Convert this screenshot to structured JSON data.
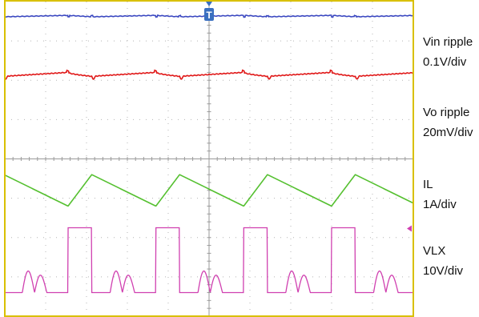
{
  "chart_data": {
    "type": "line",
    "grid": true,
    "trigger_marker": "T",
    "colors": {
      "background": "#ffffff",
      "frame": "#d9c000",
      "grid": "#b4b4b4",
      "vin": "#3a47c0",
      "vo": "#e01818",
      "il": "#55c030",
      "vlx": "#d040b0"
    },
    "x_divisions": 10,
    "y_divisions": 8,
    "series": [
      {
        "key": "vin",
        "name": "Vin ripple",
        "scale": "0.1V/div",
        "level_div": 0.38,
        "shape": "small sawtooth with glitches at switch edges",
        "period_div": 2.15,
        "ripple_div": 0.06
      },
      {
        "key": "vo",
        "name": "Vo ripple",
        "scale": "20mV/div",
        "level_div": 1.85,
        "shape": "scalloped ripple with glitches at switch edges",
        "period_div": 2.15,
        "ripple_div": 0.1
      },
      {
        "key": "il",
        "name": "IL",
        "scale": "1A/div",
        "level_div": 4.8,
        "shape": "triangular inductor current",
        "period_div": 2.15,
        "peak_to_peak_div": 0.8
      },
      {
        "key": "vlx",
        "name": "VLX",
        "scale": "10V/div",
        "shape": "square switching pulses with ringing",
        "high_div": 5.75,
        "low_div": 7.4,
        "period_div": 2.15,
        "duty": 0.27,
        "ringing_amplitude_div": 0.6
      }
    ],
    "labels": [
      {
        "name": "Vin ripple",
        "scale": "0.1V/div"
      },
      {
        "name": "Vo ripple",
        "scale": "20mV/div"
      },
      {
        "name": "IL",
        "scale": "1A/div"
      },
      {
        "name": "VLX",
        "scale": "10V/div"
      }
    ]
  }
}
